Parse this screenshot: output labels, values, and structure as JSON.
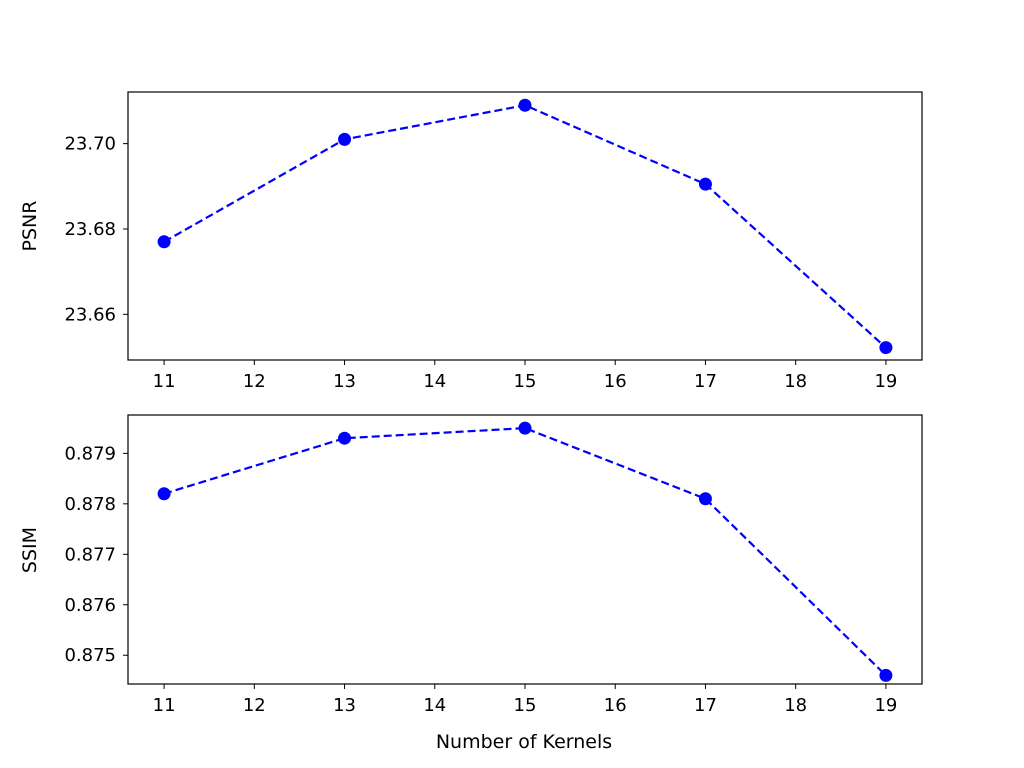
{
  "chart_data": [
    {
      "type": "line",
      "xlabel": "",
      "ylabel": "PSNR",
      "x": [
        11,
        13,
        15,
        17,
        19
      ],
      "series": [
        {
          "values": [
            23.677,
            23.701,
            23.709,
            23.6905,
            23.6522
          ]
        }
      ],
      "xlim": [
        10.6,
        19.4
      ],
      "ylim": [
        23.6493,
        23.7121
      ],
      "xticks": [
        11,
        12,
        13,
        14,
        15,
        16,
        17,
        18,
        19
      ],
      "xtick_labels": [
        "11",
        "12",
        "13",
        "14",
        "15",
        "16",
        "17",
        "18",
        "19"
      ],
      "yticks": [
        23.66,
        23.68,
        23.7
      ],
      "ytick_labels": [
        "23.66",
        "23.68",
        "23.70"
      ],
      "line_style": "dashed",
      "marker": "circle",
      "color": "#0000ff",
      "grid": false
    },
    {
      "type": "line",
      "xlabel": "Number of Kernels",
      "ylabel": "SSIM",
      "x": [
        11,
        13,
        15,
        17,
        19
      ],
      "series": [
        {
          "values": [
            0.8782,
            0.8793,
            0.8795,
            0.8781,
            0.8746
          ]
        }
      ],
      "xlim": [
        10.6,
        19.4
      ],
      "ylim": [
        0.87443,
        0.87976
      ],
      "xticks": [
        11,
        12,
        13,
        14,
        15,
        16,
        17,
        18,
        19
      ],
      "xtick_labels": [
        "11",
        "12",
        "13",
        "14",
        "15",
        "16",
        "17",
        "18",
        "19"
      ],
      "yticks": [
        0.875,
        0.876,
        0.877,
        0.878,
        0.879
      ],
      "ytick_labels": [
        "0.875",
        "0.876",
        "0.877",
        "0.878",
        "0.879"
      ],
      "line_style": "dashed",
      "marker": "circle",
      "color": "#0000ff",
      "grid": false
    }
  ]
}
